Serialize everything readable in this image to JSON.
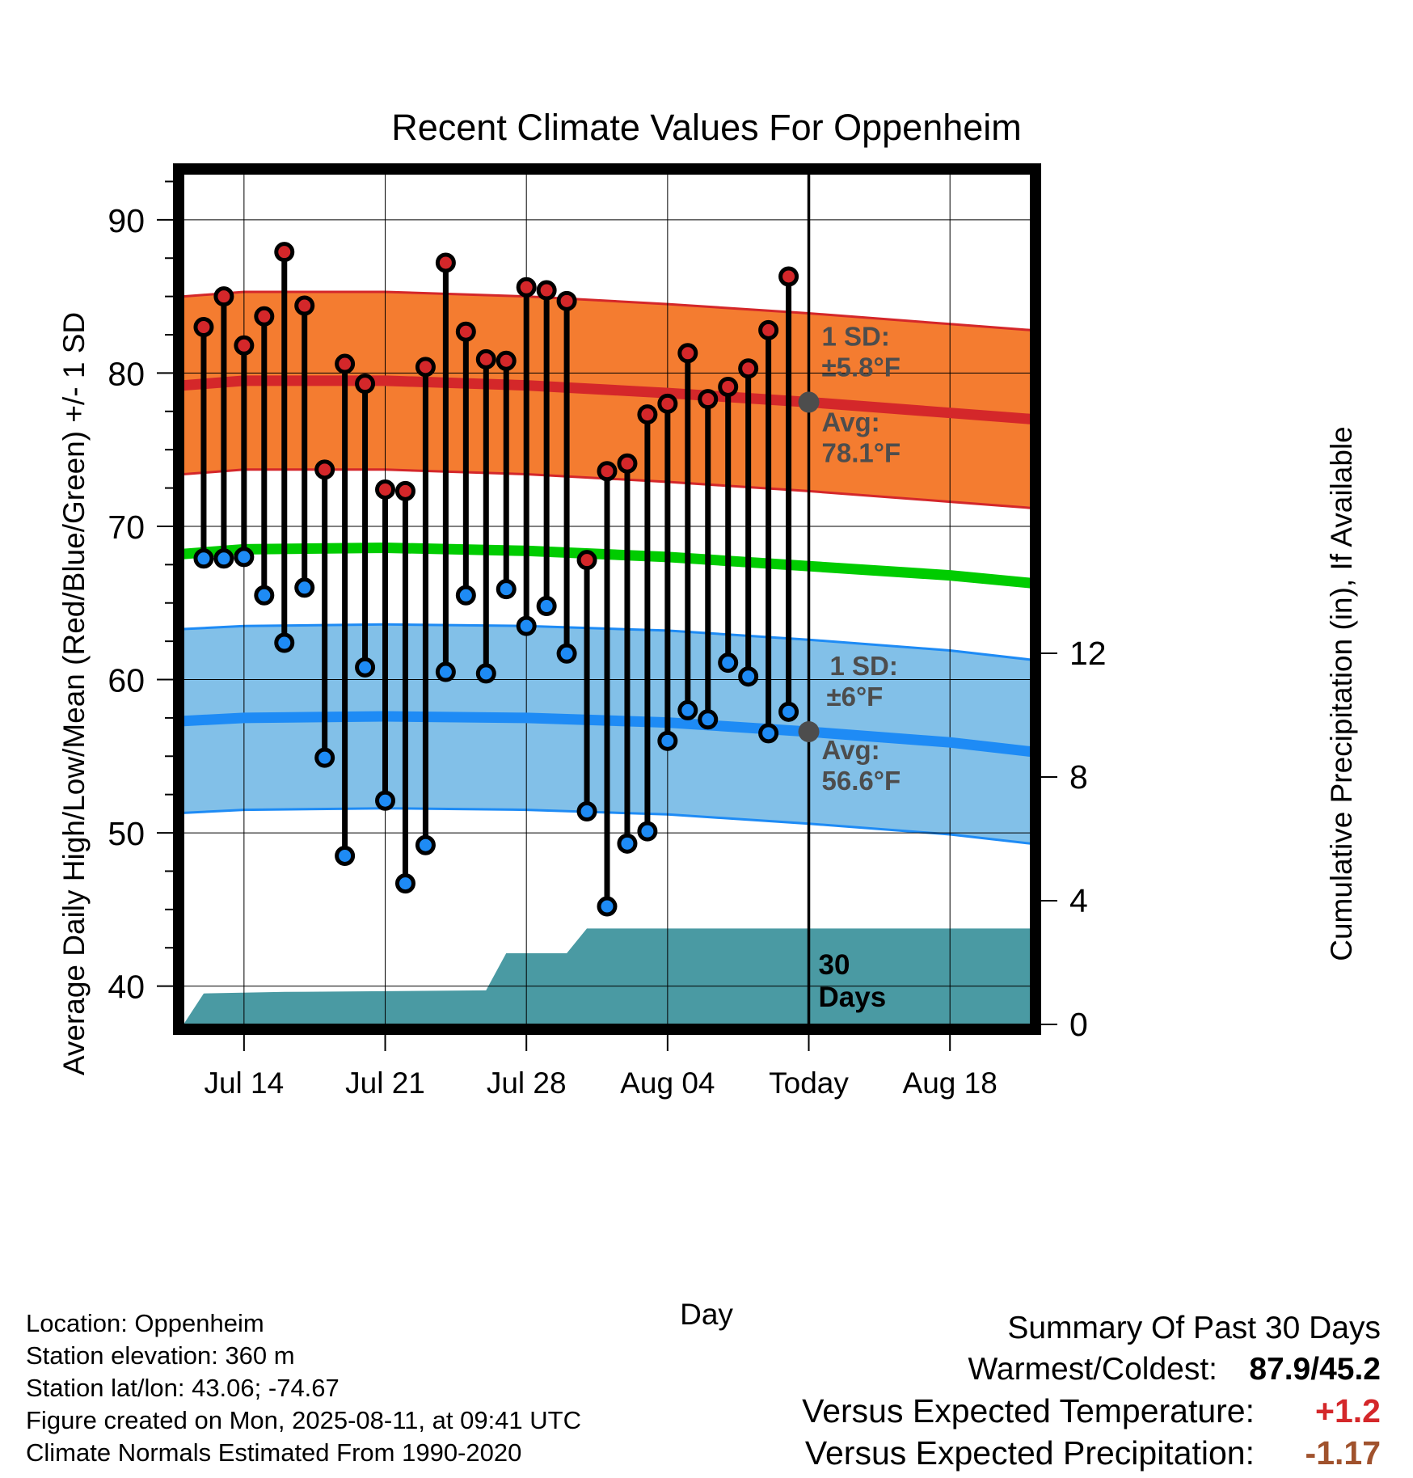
{
  "chart_data": {
    "type": "line",
    "title": "Recent Climate Values For Oppenheim",
    "xlabel": "Day",
    "ylabel_left": "Average Daily High/Low/Mean (Red/Blue/Green) +/- 1 SD",
    "ylabel_right": "Cumulative Precipitation (in), If Available",
    "x_range": [
      "2025-07-11",
      "2025-08-22"
    ],
    "ylim": [
      37.5,
      93
    ],
    "ylim_right": [
      0,
      27.5
    ],
    "x_ticks": [
      {
        "date": "2025-07-14",
        "label": "Jul 14"
      },
      {
        "date": "2025-07-21",
        "label": "Jul 21"
      },
      {
        "date": "2025-07-28",
        "label": "Jul 28"
      },
      {
        "date": "2025-08-04",
        "label": "Aug 04"
      },
      {
        "date": "2025-08-11",
        "label": "Today"
      },
      {
        "date": "2025-08-18",
        "label": "Aug 18"
      }
    ],
    "y_ticks_left": [
      40,
      50,
      60,
      70,
      80,
      90
    ],
    "y_ticks_right": [
      0,
      4,
      8,
      12
    ],
    "grid": true,
    "today": "2025-08-11",
    "today_label": [
      "30",
      "Days"
    ],
    "observations": {
      "dates": [
        "2025-07-12",
        "2025-07-13",
        "2025-07-14",
        "2025-07-15",
        "2025-07-16",
        "2025-07-17",
        "2025-07-18",
        "2025-07-19",
        "2025-07-20",
        "2025-07-21",
        "2025-07-22",
        "2025-07-23",
        "2025-07-24",
        "2025-07-25",
        "2025-07-26",
        "2025-07-27",
        "2025-07-28",
        "2025-07-29",
        "2025-07-30",
        "2025-07-31",
        "2025-08-01",
        "2025-08-02",
        "2025-08-03",
        "2025-08-04",
        "2025-08-05",
        "2025-08-06",
        "2025-08-07",
        "2025-08-08",
        "2025-08-09",
        "2025-08-10"
      ],
      "highs": [
        83.0,
        85.0,
        81.8,
        83.7,
        87.9,
        84.4,
        73.7,
        80.6,
        79.3,
        72.4,
        72.3,
        80.4,
        87.2,
        82.7,
        80.9,
        80.8,
        85.6,
        85.4,
        84.7,
        67.8,
        73.6,
        74.1,
        77.3,
        78.0,
        81.3,
        78.3,
        79.1,
        80.3,
        82.8,
        86.3
      ],
      "lows": [
        67.9,
        67.9,
        68.0,
        65.5,
        62.4,
        66.0,
        54.9,
        48.5,
        60.8,
        52.1,
        46.7,
        49.2,
        60.5,
        65.5,
        60.4,
        65.9,
        63.5,
        64.8,
        61.7,
        51.4,
        45.2,
        49.3,
        50.1,
        56.0,
        58.0,
        57.4,
        61.1,
        60.2,
        56.5,
        57.9
      ]
    },
    "normals": {
      "dates": [
        "2025-07-11",
        "2025-07-14",
        "2025-07-21",
        "2025-07-28",
        "2025-08-04",
        "2025-08-11",
        "2025-08-18",
        "2025-08-22"
      ],
      "avg_high": [
        79.2,
        79.5,
        79.5,
        79.2,
        78.7,
        78.1,
        77.4,
        77.0
      ],
      "avg_low": [
        57.3,
        57.5,
        57.6,
        57.5,
        57.2,
        56.6,
        55.9,
        55.3
      ],
      "avg_mean": [
        68.2,
        68.5,
        68.6,
        68.4,
        68.0,
        67.4,
        66.8,
        66.3
      ],
      "high_sd": 5.8,
      "low_sd": 6.0
    },
    "high_band_label": {
      "sd_title": "1 SD:",
      "sd": "±5.8°F",
      "avg_title": "Avg:",
      "avg": "78.1°F"
    },
    "low_band_label": {
      "sd_title": "1 SD:",
      "sd": "±6°F",
      "avg_title": "Avg:",
      "avg": "56.6°F"
    },
    "precip_cumulative": {
      "dates": [
        "2025-07-11",
        "2025-07-12",
        "2025-07-16",
        "2025-07-26",
        "2025-07-27",
        "2025-07-30",
        "2025-07-31",
        "2025-08-22"
      ],
      "values": [
        0.0,
        1.0,
        1.05,
        1.1,
        2.3,
        2.3,
        3.1,
        3.1
      ]
    },
    "colors": {
      "high": "#d4272a",
      "high_band": "#f47c30",
      "low": "#1e8bf5",
      "low_band": "#82c0e8",
      "mean": "#00cc00",
      "precip": "#4a9aa3",
      "avg_marker": "#4d4d4d",
      "label_text": "#4d4d4d"
    }
  },
  "info": {
    "location": "Location: Oppenheim",
    "elevation": "Station elevation: 360 m",
    "latlon": "Station lat/lon: 43.06; -74.67",
    "created": "Figure created on Mon, 2025-08-11, at 09:41 UTC",
    "normals": "Climate Normals Estimated From 1990-2020"
  },
  "summary": {
    "title": "Summary Of Past 30 Days",
    "warmest_label": "Warmest/Coldest:",
    "warmest_value": "87.9/45.2",
    "temp_label": "Versus Expected Temperature:",
    "temp_value": "+1.2",
    "temp_color": "#d4272a",
    "precip_label": "Versus Expected Precipitation:",
    "precip_value": "-1.17",
    "precip_color": "#a0522d"
  }
}
